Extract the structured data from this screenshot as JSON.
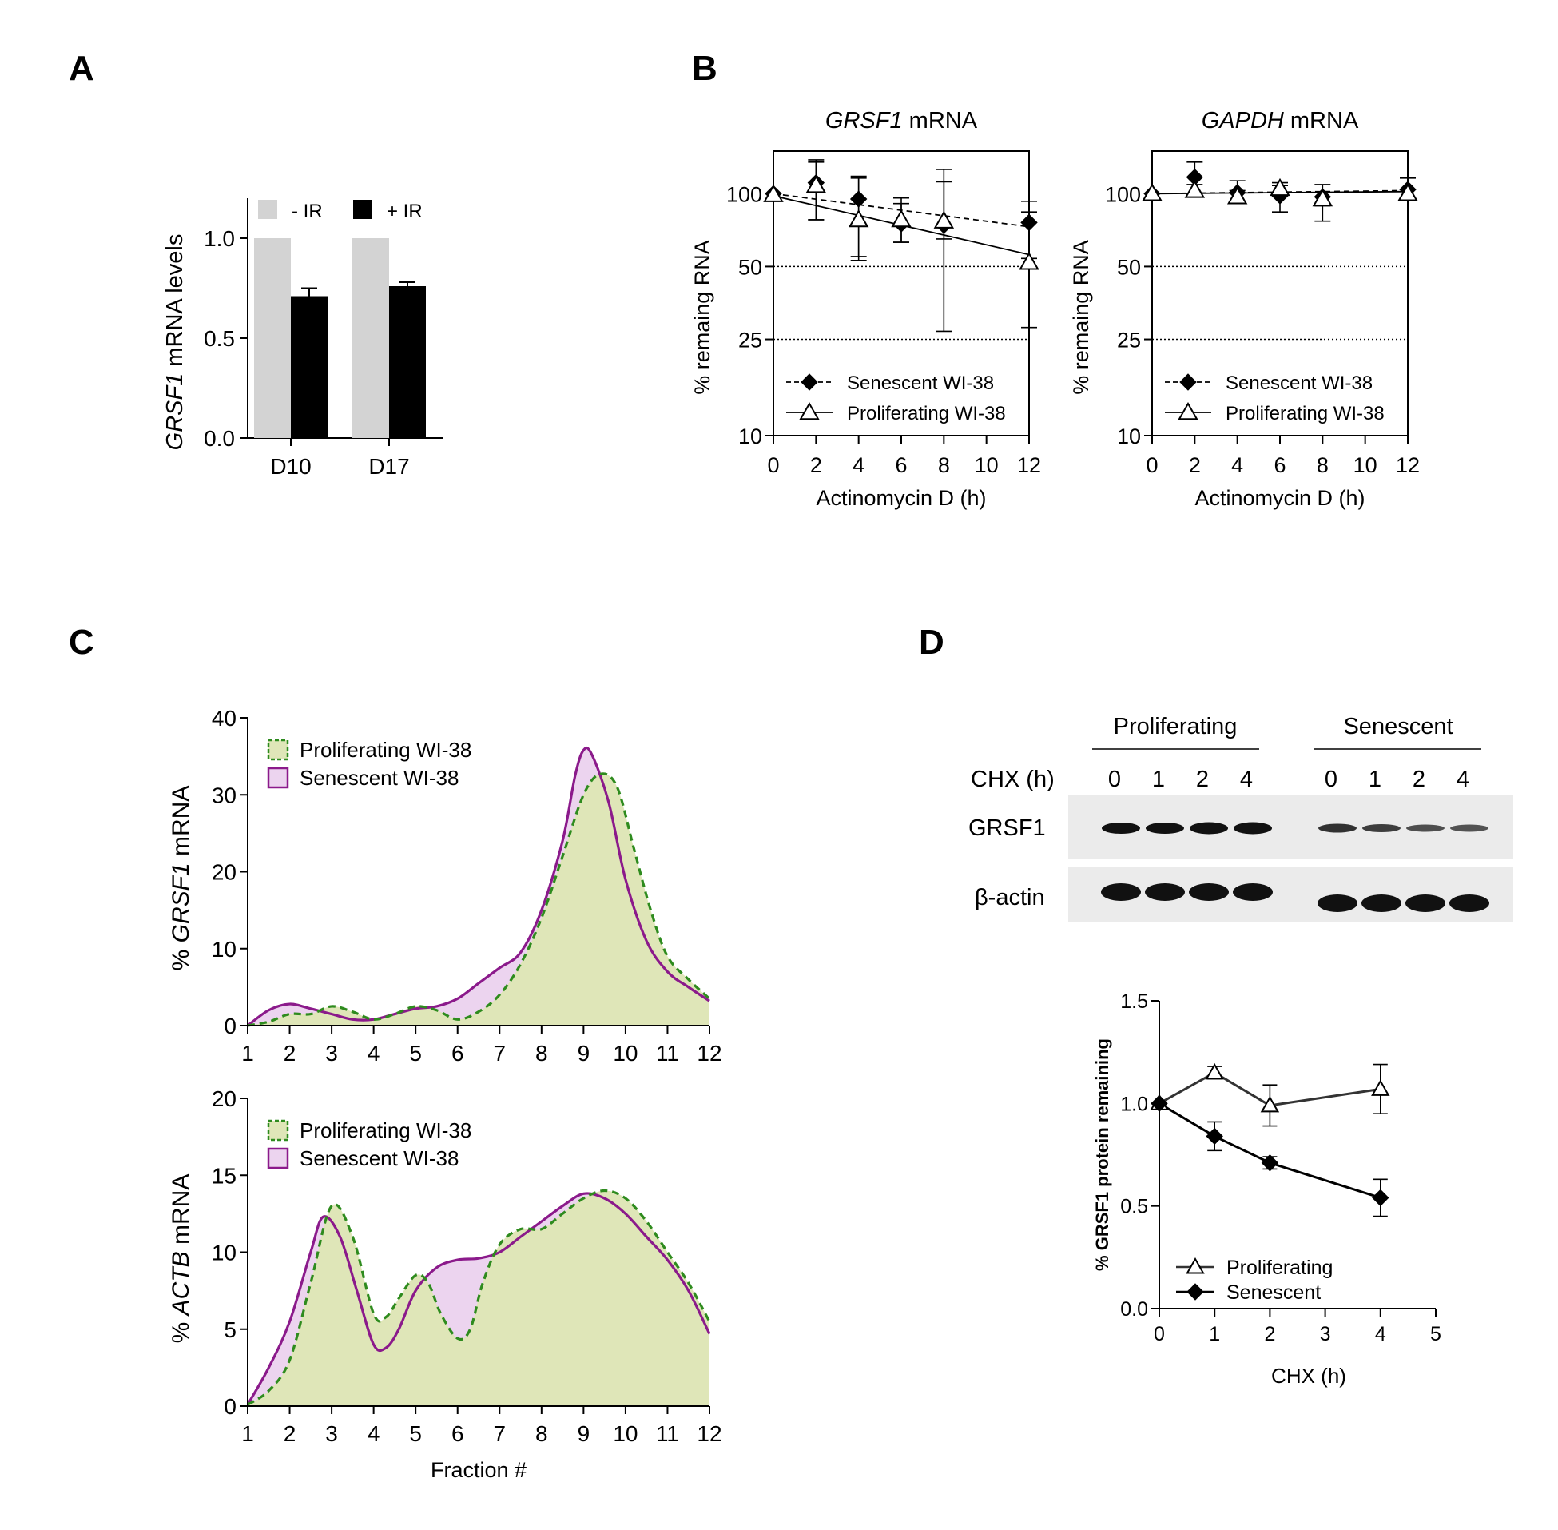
{
  "panels": {
    "A": {
      "letter": "A"
    },
    "B": {
      "letter": "B"
    },
    "C": {
      "letter": "C"
    },
    "D": {
      "letter": "D"
    }
  },
  "western": {
    "group_proliferating": "Proliferating",
    "group_senescent": "Senescent",
    "chx_label": "CHX (h)",
    "timepoints": [
      "0",
      "1",
      "2",
      "4",
      "0",
      "1",
      "2",
      "4"
    ],
    "row_grsf1": "GRSF1",
    "row_actin": "β-actin"
  },
  "chart_data": [
    {
      "id": "A",
      "type": "bar",
      "categories": [
        "D10",
        "D17"
      ],
      "series": [
        {
          "name": "- IR",
          "values": [
            1.0,
            1.0
          ],
          "error": [
            0,
            0
          ],
          "color": "#d3d3d3"
        },
        {
          "name": "+ IR",
          "values": [
            0.71,
            0.76
          ],
          "error": [
            0.04,
            0.02
          ],
          "color": "#000000"
        }
      ],
      "ylabel_italic": "GRSF1",
      "ylabel_rest": " mRNA levels",
      "ylim": [
        0,
        1.2
      ],
      "yticks": [
        "0.0",
        "0.5",
        "1.0"
      ],
      "legend_position": "top"
    },
    {
      "id": "B1",
      "type": "line",
      "title_italic": "GRSF1",
      "title_rest": " mRNA",
      "xlabel": "Actinomycin D (h)",
      "ylabel": "% remaing RNA",
      "yscale": "log",
      "ylim": [
        10,
        150
      ],
      "xlim": [
        0,
        12
      ],
      "xticks": [
        "0",
        "2",
        "4",
        "6",
        "8",
        "10",
        "12"
      ],
      "yticks": [
        "10",
        "25",
        "50",
        "100"
      ],
      "reference_lines": [
        50,
        25
      ],
      "series": [
        {
          "name": "Senescent WI-38",
          "marker": "diamond",
          "line": "dashed",
          "x": [
            0,
            2,
            4,
            6,
            8,
            12
          ],
          "y": [
            100,
            111,
            95,
            75,
            74,
            76
          ],
          "err_low": [
            0,
            33,
            40,
            12,
            9,
            22
          ],
          "err_high": [
            0,
            24,
            21,
            16,
            38,
            17
          ],
          "fit": [
            [
              0,
              100
            ],
            [
              12,
              73
            ]
          ]
        },
        {
          "name": "Proliferating WI-38",
          "marker": "triangle-open",
          "line": "solid",
          "x": [
            0,
            2,
            4,
            6,
            8,
            12
          ],
          "y": [
            99,
            108,
            78,
            78,
            77,
            52
          ],
          "err_low": [
            0,
            30,
            25,
            15,
            50,
            24
          ],
          "err_high": [
            0,
            30,
            40,
            18,
            49,
            32
          ],
          "fit": [
            [
              0,
              98
            ],
            [
              12,
              56
            ]
          ]
        }
      ]
    },
    {
      "id": "B2",
      "type": "line",
      "title_italic": "GAPDH",
      "title_rest": " mRNA",
      "xlabel": "Actinomycin D (h)",
      "ylabel": "% remaing RNA",
      "yscale": "log",
      "ylim": [
        10,
        150
      ],
      "xlim": [
        0,
        12
      ],
      "xticks": [
        "0",
        "2",
        "4",
        "6",
        "8",
        "10",
        "12"
      ],
      "yticks": [
        "10",
        "25",
        "50",
        "100"
      ],
      "reference_lines": [
        50,
        25
      ],
      "series": [
        {
          "name": "Senescent WI-38",
          "marker": "diamond",
          "line": "dashed",
          "x": [
            0,
            2,
            4,
            6,
            8,
            12
          ],
          "y": [
            100,
            117,
            101,
            98,
            97,
            104
          ],
          "err_low": [
            0,
            18,
            10,
            14,
            20,
            8
          ],
          "err_high": [
            0,
            18,
            12,
            10,
            12,
            12
          ],
          "fit": [
            [
              0,
              100
            ],
            [
              12,
              103
            ]
          ]
        },
        {
          "name": "Proliferating WI-38",
          "marker": "triangle-open",
          "line": "solid",
          "x": [
            0,
            2,
            4,
            6,
            8,
            12
          ],
          "y": [
            100,
            103,
            97,
            105,
            95,
            100
          ],
          "err_low": [
            0,
            6,
            6,
            6,
            6,
            4
          ],
          "err_high": [
            0,
            6,
            6,
            6,
            6,
            4
          ],
          "fit": [
            [
              0,
              100
            ],
            [
              12,
              102
            ]
          ]
        }
      ]
    },
    {
      "id": "C1",
      "type": "area",
      "ylabel_pre": "% ",
      "ylabel_italic": "GRSF1",
      "ylabel_rest": " mRNA",
      "xlabel": "",
      "xlim": [
        1,
        12
      ],
      "ylim": [
        0,
        40
      ],
      "xticks": [
        "1",
        "2",
        "3",
        "4",
        "5",
        "6",
        "7",
        "8",
        "9",
        "10",
        "11",
        "12"
      ],
      "yticks": [
        "0",
        "10",
        "20",
        "30",
        "40"
      ],
      "series": [
        {
          "name": "Proliferating WI-38",
          "style": "dashed",
          "line_color": "#2e8b1e",
          "fill": "#dfe6b8",
          "x": [
            1,
            1.5,
            2,
            2.5,
            3,
            3.5,
            4,
            4.5,
            5,
            5.5,
            6,
            6.5,
            7,
            7.5,
            8,
            8.5,
            9,
            9.4,
            9.8,
            10.2,
            10.6,
            11,
            11.5,
            12
          ],
          "y": [
            0,
            0.5,
            1.5,
            1.5,
            2.5,
            1.8,
            0.8,
            1.5,
            2.5,
            2.0,
            0.8,
            1.8,
            4,
            8,
            14,
            22,
            30,
            32.7,
            31,
            23,
            15,
            9,
            6,
            3.5
          ]
        },
        {
          "name": "Senescent WI-38",
          "style": "solid",
          "line_color": "#8b1a8b",
          "fill": "#ecd4ef",
          "x": [
            1,
            1.5,
            2,
            2.5,
            3,
            3.5,
            4,
            4.5,
            5,
            5.5,
            6,
            6.5,
            7,
            7.5,
            8,
            8.5,
            8.8,
            9,
            9.2,
            9.6,
            10,
            10.5,
            11,
            11.5,
            12
          ],
          "y": [
            0,
            2,
            2.8,
            2.2,
            1.5,
            0.8,
            0.8,
            1.5,
            2.2,
            2.5,
            3.5,
            5.5,
            7.5,
            9.5,
            15,
            24,
            32.5,
            35.8,
            35.2,
            29,
            19,
            11,
            7,
            5,
            3.2
          ]
        }
      ]
    },
    {
      "id": "C2",
      "type": "area",
      "ylabel_pre": "% ",
      "ylabel_italic": "ACTB",
      "ylabel_rest": " mRNA",
      "xlabel": "Fraction #",
      "xlim": [
        1,
        12
      ],
      "ylim": [
        0,
        20
      ],
      "xticks": [
        "1",
        "2",
        "3",
        "4",
        "5",
        "6",
        "7",
        "8",
        "9",
        "10",
        "11",
        "12"
      ],
      "yticks": [
        "0",
        "5",
        "10",
        "15",
        "20"
      ],
      "series": [
        {
          "name": "Proliferating WI-38",
          "style": "dashed",
          "line_color": "#2e8b1e",
          "fill": "#dfe6b8",
          "x": [
            1,
            1.5,
            2,
            2.5,
            3,
            3.5,
            4,
            4.3,
            4.6,
            5,
            5.3,
            5.6,
            6,
            6.3,
            6.6,
            7,
            7.5,
            8,
            8.5,
            9,
            9.5,
            10,
            10.5,
            11,
            11.5,
            12
          ],
          "y": [
            0.1,
            1,
            3,
            8,
            13,
            11,
            6,
            5.8,
            7,
            8.5,
            8,
            6,
            4.4,
            5,
            8,
            10.5,
            11.5,
            11.5,
            12.5,
            13.5,
            14,
            13.5,
            12,
            10,
            8,
            5.5
          ]
        },
        {
          "name": "Senescent WI-38",
          "style": "solid",
          "line_color": "#8b1a8b",
          "fill": "#ecd4ef",
          "x": [
            1,
            1.5,
            2,
            2.5,
            2.8,
            3.2,
            3.6,
            4,
            4.3,
            4.6,
            5,
            5.5,
            6,
            6.5,
            7,
            7.5,
            8,
            8.5,
            9,
            9.5,
            10,
            10.5,
            11,
            11.5,
            12
          ],
          "y": [
            0.1,
            2.5,
            5.5,
            10,
            12.3,
            11,
            7.5,
            4,
            3.8,
            5,
            7.5,
            9,
            9.5,
            9.6,
            10,
            11,
            12,
            13,
            13.8,
            13.5,
            12.5,
            11,
            9.5,
            7.5,
            4.7
          ]
        }
      ]
    },
    {
      "id": "D",
      "type": "line",
      "xlabel": "CHX (h)",
      "ylabel": "% GRSF1 protein remaining",
      "xlim": [
        0,
        5
      ],
      "ylim": [
        0,
        1.5
      ],
      "xticks": [
        "0",
        "1",
        "2",
        "3",
        "4",
        "5"
      ],
      "yticks": [
        "0.0",
        "0.5",
        "1.0",
        "1.5"
      ],
      "series": [
        {
          "name": "Proliferating",
          "marker": "triangle-open",
          "line_color": "#333333",
          "x": [
            0,
            1,
            2,
            4
          ],
          "y": [
            1.0,
            1.15,
            0.99,
            1.07
          ],
          "error": [
            0.0,
            0.03,
            0.1,
            0.12
          ]
        },
        {
          "name": "Senescent",
          "marker": "diamond",
          "line_color": "#000000",
          "x": [
            0,
            1,
            2,
            4
          ],
          "y": [
            1.0,
            0.84,
            0.71,
            0.54
          ],
          "error": [
            0.0,
            0.07,
            0.03,
            0.09
          ]
        }
      ]
    }
  ]
}
